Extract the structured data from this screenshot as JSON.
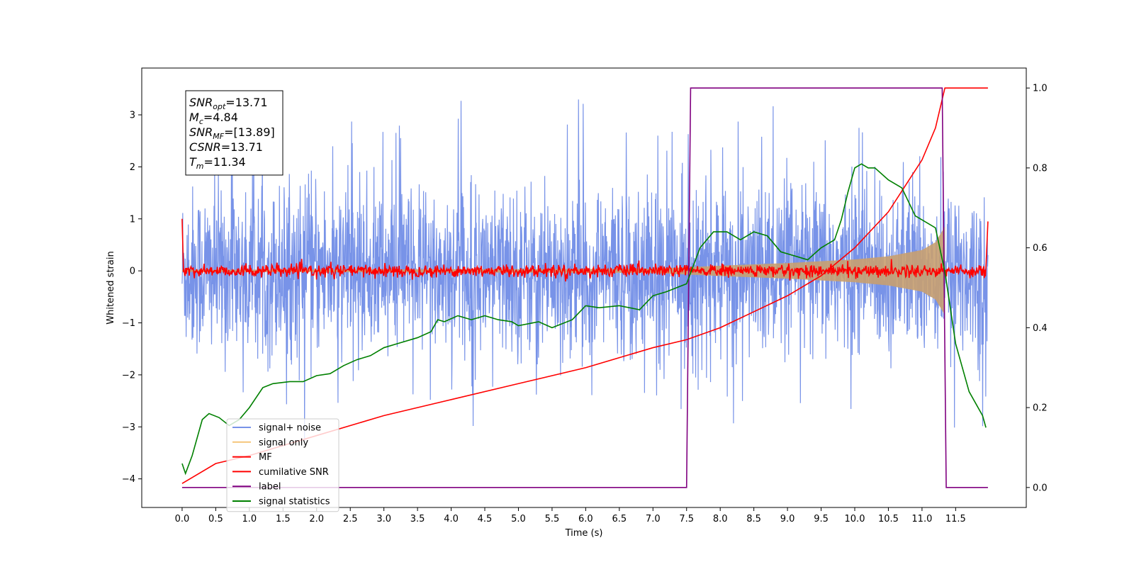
{
  "chart_data": {
    "type": "line",
    "title": "",
    "xlabel": "Time (s)",
    "ylabel": "Whitened strain",
    "xlim": [
      -0.6,
      12.55
    ],
    "ylim": [
      -4.55,
      3.9
    ],
    "ylim_right": [
      -0.05,
      1.05
    ],
    "x_ticks": [
      0.0,
      0.5,
      1.0,
      1.5,
      2.0,
      2.5,
      3.0,
      3.5,
      4.0,
      4.5,
      5.0,
      5.5,
      6.0,
      6.5,
      7.0,
      7.5,
      8.0,
      8.5,
      9.0,
      9.5,
      10.0,
      10.5,
      11.0,
      11.5
    ],
    "x_tick_labels": [
      "0.0",
      "0.5",
      "1.0",
      "1.5",
      "2.0",
      "2.5",
      "3.0",
      "3.5",
      "4.0",
      "4.5",
      "5.0",
      "5.5",
      "6.0",
      "6.5",
      "7.0",
      "7.5",
      "8.0",
      "8.5",
      "9.0",
      "9.5",
      "10.0",
      "10.5",
      "11.0",
      "11.5"
    ],
    "y_ticks": [
      3,
      2,
      1,
      0,
      -1,
      -2,
      -3,
      -4
    ],
    "y_tick_labels": [
      "3",
      "2",
      "1",
      "0",
      "−1",
      "−2",
      "−3",
      "−4"
    ],
    "y_right_ticks": [
      1.0,
      0.8,
      0.6,
      0.4,
      0.2,
      0.0
    ],
    "y_right_tick_labels": [
      "1.0",
      "0.8",
      "0.6",
      "0.4",
      "0.2",
      "0.0"
    ],
    "grid": false,
    "legend_position": "lower-left",
    "annotation": {
      "lines": [
        {
          "main": "SNR",
          "sub": "opt",
          "rest": "=13.71"
        },
        {
          "main": "M",
          "sub": "c",
          "rest": "=4.84"
        },
        {
          "main": "SNR",
          "sub": "MF",
          "rest": "=[13.89]"
        },
        {
          "main": "CSNR",
          "sub": "",
          "rest": "=13.71"
        },
        {
          "main": "T",
          "sub": "m",
          "rest": "=11.34"
        }
      ]
    },
    "series": [
      {
        "name": "signal+ noise",
        "color": "#7893e8",
        "axis": "left",
        "style": "noise",
        "x_range": [
          0.0,
          11.98
        ],
        "noise_std": 0.8,
        "spike_max": 3.5,
        "spike_min": -4.15
      },
      {
        "name": "signal only",
        "color": "#f5c57a",
        "axis": "left",
        "style": "chirp-envelope",
        "x": [
          0.0,
          7.0,
          8.0,
          9.0,
          10.0,
          10.5,
          11.0,
          11.2,
          11.34
        ],
        "amplitude": [
          0.02,
          0.04,
          0.1,
          0.15,
          0.22,
          0.28,
          0.4,
          0.55,
          0.85
        ]
      },
      {
        "name": "MF",
        "color": "#ff0000",
        "axis": "left",
        "style": "jitter",
        "x_range": [
          0.0,
          11.98
        ],
        "noise_std": 0.06,
        "start_value": 1.0,
        "end_value": 0.95
      },
      {
        "name": "cumilative SNR",
        "color": "#ff0000",
        "axis": "right",
        "x": [
          0.0,
          0.5,
          1.0,
          2.0,
          3.0,
          4.0,
          5.0,
          6.0,
          7.0,
          7.5,
          8.0,
          8.5,
          9.0,
          9.5,
          10.0,
          10.5,
          11.0,
          11.2,
          11.34,
          11.98
        ],
        "values": [
          0.01,
          0.06,
          0.08,
          0.13,
          0.18,
          0.22,
          0.26,
          0.3,
          0.35,
          0.37,
          0.4,
          0.44,
          0.48,
          0.53,
          0.6,
          0.69,
          0.82,
          0.9,
          1.0,
          1.0
        ]
      },
      {
        "name": "label",
        "color": "#800080",
        "axis": "right",
        "x": [
          0.0,
          7.5,
          7.56,
          11.3,
          11.36,
          11.98
        ],
        "values": [
          0.0,
          0.0,
          1.0,
          1.0,
          0.0,
          0.0
        ]
      },
      {
        "name": "signal statistics",
        "color": "#008000",
        "axis": "right",
        "x": [
          0.0,
          0.05,
          0.15,
          0.3,
          0.4,
          0.55,
          0.7,
          0.85,
          1.0,
          1.2,
          1.35,
          1.6,
          1.8,
          2.0,
          2.2,
          2.4,
          2.6,
          2.8,
          3.0,
          3.2,
          3.5,
          3.7,
          3.8,
          3.9,
          4.1,
          4.3,
          4.5,
          4.7,
          4.9,
          5.0,
          5.3,
          5.5,
          5.8,
          6.0,
          6.2,
          6.5,
          6.8,
          7.0,
          7.2,
          7.5,
          7.7,
          7.9,
          8.1,
          8.3,
          8.5,
          8.7,
          8.9,
          9.1,
          9.3,
          9.5,
          9.7,
          9.8,
          9.9,
          10.0,
          10.1,
          10.2,
          10.3,
          10.5,
          10.7,
          10.9,
          11.0,
          11.2,
          11.34,
          11.5,
          11.7,
          11.9,
          11.95
        ],
        "values": [
          0.06,
          0.035,
          0.08,
          0.17,
          0.185,
          0.175,
          0.155,
          0.17,
          0.2,
          0.25,
          0.26,
          0.265,
          0.265,
          0.28,
          0.285,
          0.305,
          0.32,
          0.33,
          0.35,
          0.36,
          0.375,
          0.39,
          0.42,
          0.415,
          0.43,
          0.42,
          0.43,
          0.42,
          0.415,
          0.405,
          0.415,
          0.4,
          0.42,
          0.455,
          0.45,
          0.455,
          0.445,
          0.48,
          0.49,
          0.51,
          0.6,
          0.64,
          0.64,
          0.62,
          0.64,
          0.63,
          0.59,
          0.58,
          0.57,
          0.6,
          0.62,
          0.67,
          0.74,
          0.8,
          0.81,
          0.8,
          0.8,
          0.77,
          0.75,
          0.68,
          0.67,
          0.65,
          0.54,
          0.36,
          0.24,
          0.18,
          0.15
        ]
      }
    ]
  }
}
